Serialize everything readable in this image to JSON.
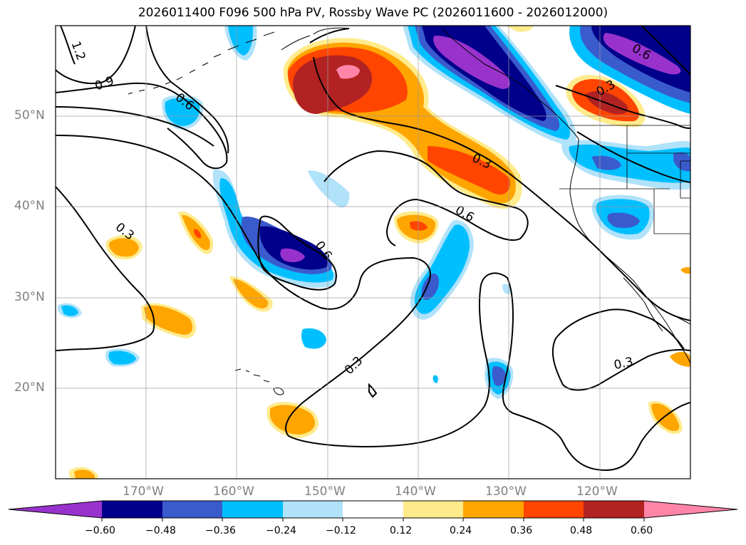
{
  "title": "2026011400 F096 500 hPa PV, Rossby Wave PC (2026011600 - 2026012000)",
  "lat_labels": [
    "50°N",
    "40°N",
    "30°N",
    "20°N"
  ],
  "lon_labels": [
    "170°W",
    "160°W",
    "150°W",
    "140°W",
    "130°W",
    "120°W"
  ],
  "contour_labels": [
    "1.2",
    "0.9",
    "0.6",
    "0.3",
    "0.6",
    "0.3",
    "0.6",
    "0.3",
    "0.3",
    "0.3",
    "0.6"
  ],
  "colorbar": {
    "ticks": [
      "−0.60",
      "−0.48",
      "−0.36",
      "−0.24",
      "−0.12",
      "0.12",
      "0.24",
      "0.36",
      "0.48",
      "0.60"
    ],
    "colors": [
      "#9932cc",
      "#00008b",
      "#3a5bcc",
      "#00bfff",
      "#b0e2fa",
      "#ffffff",
      "#ffeb8c",
      "#ffa500",
      "#ff4500",
      "#b22222",
      "#ff85a8"
    ]
  },
  "colors": {
    "purple": "#9932cc",
    "navy": "#00008b",
    "royal": "#3a5bcc",
    "sky": "#00bfff",
    "pale_blue": "#b0e2fa",
    "pale_yellow": "#ffeb8c",
    "orange": "#ffa500",
    "red_orange": "#ff4500",
    "firebrick": "#b22222",
    "pink": "#ff85a8"
  }
}
